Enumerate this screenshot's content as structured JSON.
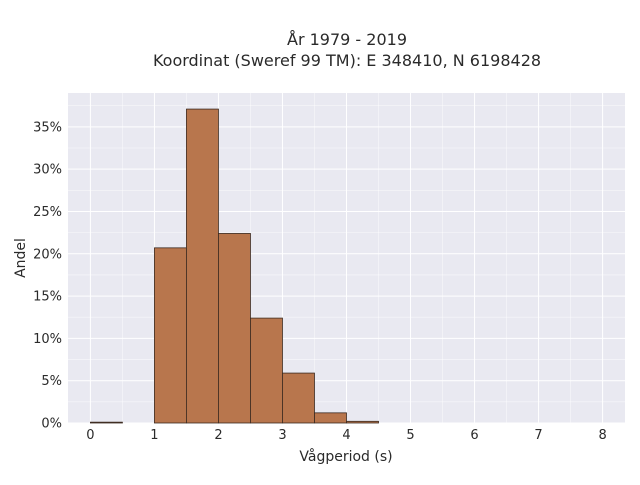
{
  "chart_data": {
    "type": "bar",
    "title_lines": [
      "År 1979 - 2019",
      "Koordinat (Sweref 99 TM): E 348410, N 6198428"
    ],
    "xlabel": "Vågperiod (s)",
    "ylabel": "Andel",
    "xlim": [
      -0.35,
      8.35
    ],
    "ylim": [
      0,
      39
    ],
    "x_ticks": [
      0,
      1,
      2,
      3,
      4,
      5,
      6,
      7,
      8
    ],
    "x_tick_labels": [
      "0",
      "1",
      "2",
      "3",
      "4",
      "5",
      "6",
      "7",
      "8"
    ],
    "y_ticks": [
      0,
      5,
      10,
      15,
      20,
      25,
      30,
      35
    ],
    "y_tick_labels": [
      "0%",
      "5%",
      "10%",
      "15%",
      "20%",
      "25%",
      "30%",
      "35%"
    ],
    "grid": true,
    "bin_width": 0.5,
    "bins": [
      {
        "start": 0.0,
        "end": 0.5,
        "value": 0.1
      },
      {
        "start": 1.0,
        "end": 1.5,
        "value": 20.7
      },
      {
        "start": 1.5,
        "end": 2.0,
        "value": 37.1
      },
      {
        "start": 2.0,
        "end": 2.5,
        "value": 22.4
      },
      {
        "start": 2.5,
        "end": 3.0,
        "value": 12.4
      },
      {
        "start": 3.0,
        "end": 3.5,
        "value": 5.9
      },
      {
        "start": 3.5,
        "end": 4.0,
        "value": 1.2
      },
      {
        "start": 4.0,
        "end": 4.5,
        "value": 0.2
      }
    ],
    "colors": {
      "bar_fill": "#b8764d",
      "bar_stroke": "#3b2a20",
      "plot_bg": "#e9e9f1",
      "grid": "#ffffff"
    }
  }
}
